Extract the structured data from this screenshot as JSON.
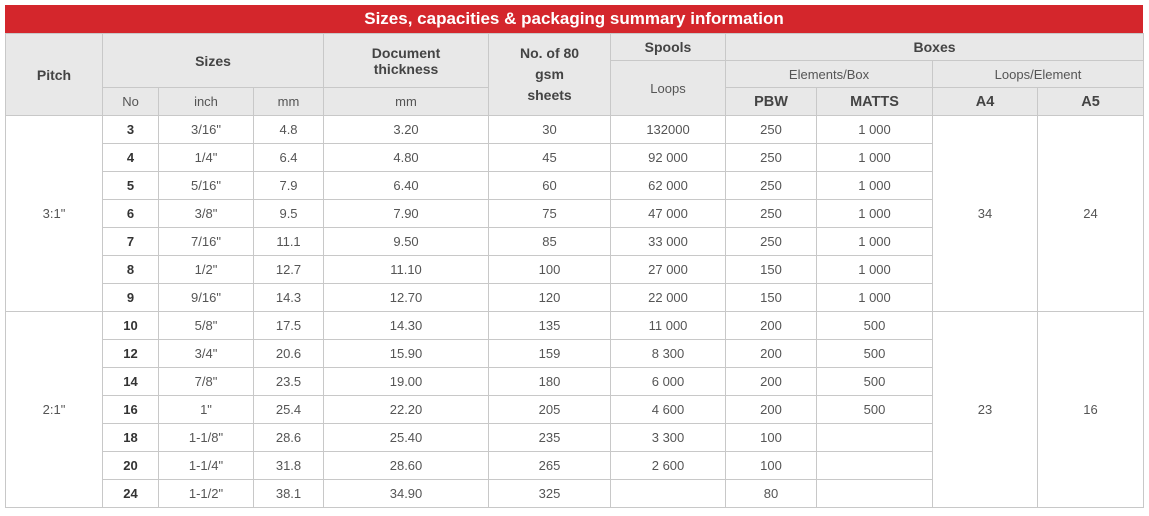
{
  "title": "Sizes, capacities & packaging summary information",
  "headers": {
    "pitch": "Pitch",
    "sizes": "Sizes",
    "doc_thickness": "Document thickness",
    "sheets": "No. of 80 gsm sheets",
    "spools": "Spools",
    "loops": "Loops",
    "boxes": "Boxes",
    "elements_box": "Elements/Box",
    "loops_element": "Loops/Element",
    "no": "No",
    "inch": "inch",
    "mm": "mm",
    "doc_mm": "mm",
    "pbw": "PBW",
    "matts": "MATTS",
    "a4": "A4",
    "a5": "A5"
  },
  "groups": [
    {
      "pitch": "3:1\"",
      "a4": "34",
      "a5": "24",
      "rows": [
        {
          "no": "3",
          "inch": "3/16\"",
          "mm": "4.8",
          "doc": "3.20",
          "sheets": "30",
          "loops": "132000",
          "pbw": "250",
          "matts": "1 000"
        },
        {
          "no": "4",
          "inch": "1/4\"",
          "mm": "6.4",
          "doc": "4.80",
          "sheets": "45",
          "loops": "92 000",
          "pbw": "250",
          "matts": "1 000"
        },
        {
          "no": "5",
          "inch": "5/16\"",
          "mm": "7.9",
          "doc": "6.40",
          "sheets": "60",
          "loops": "62 000",
          "pbw": "250",
          "matts": "1 000"
        },
        {
          "no": "6",
          "inch": "3/8\"",
          "mm": "9.5",
          "doc": "7.90",
          "sheets": "75",
          "loops": "47 000",
          "pbw": "250",
          "matts": "1 000"
        },
        {
          "no": "7",
          "inch": "7/16\"",
          "mm": "11.1",
          "doc": "9.50",
          "sheets": "85",
          "loops": "33 000",
          "pbw": "250",
          "matts": "1 000"
        },
        {
          "no": "8",
          "inch": "1/2\"",
          "mm": "12.7",
          "doc": "11.10",
          "sheets": "100",
          "loops": "27 000",
          "pbw": "150",
          "matts": "1 000"
        },
        {
          "no": "9",
          "inch": "9/16\"",
          "mm": "14.3",
          "doc": "12.70",
          "sheets": "120",
          "loops": "22 000",
          "pbw": "150",
          "matts": "1 000"
        }
      ]
    },
    {
      "pitch": "2:1\"",
      "a4": "23",
      "a5": "16",
      "rows": [
        {
          "no": "10",
          "inch": "5/8\"",
          "mm": "17.5",
          "doc": "14.30",
          "sheets": "135",
          "loops": "11 000",
          "pbw": "200",
          "matts": "500"
        },
        {
          "no": "12",
          "inch": "3/4\"",
          "mm": "20.6",
          "doc": "15.90",
          "sheets": "159",
          "loops": "8 300",
          "pbw": "200",
          "matts": "500"
        },
        {
          "no": "14",
          "inch": "7/8\"",
          "mm": "23.5",
          "doc": "19.00",
          "sheets": "180",
          "loops": "6 000",
          "pbw": "200",
          "matts": "500"
        },
        {
          "no": "16",
          "inch": "1\"",
          "mm": "25.4",
          "doc": "22.20",
          "sheets": "205",
          "loops": "4 600",
          "pbw": "200",
          "matts": "500"
        },
        {
          "no": "18",
          "inch": "1-1/8\"",
          "mm": "28.6",
          "doc": "25.40",
          "sheets": "235",
          "loops": "3 300",
          "pbw": "100",
          "matts": ""
        },
        {
          "no": "20",
          "inch": "1-1/4\"",
          "mm": "31.8",
          "doc": "28.60",
          "sheets": "265",
          "loops": "2 600",
          "pbw": "100",
          "matts": ""
        },
        {
          "no": "24",
          "inch": "1-1/2\"",
          "mm": "38.1",
          "doc": "34.90",
          "sheets": "325",
          "loops": "",
          "pbw": "80",
          "matts": ""
        }
      ]
    }
  ]
}
